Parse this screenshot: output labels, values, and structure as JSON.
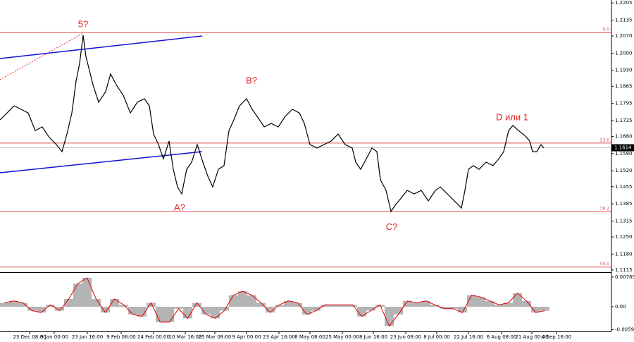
{
  "chart_data": [
    {
      "type": "line",
      "color": "#000000",
      "x": [
        0,
        10,
        20,
        30,
        40,
        50,
        60,
        70,
        80,
        88,
        95,
        102,
        108,
        113,
        118,
        122,
        127,
        132,
        140,
        150,
        157,
        165,
        175,
        185,
        195,
        205,
        212,
        218,
        225,
        232,
        240,
        246,
        252,
        258,
        265,
        272,
        280,
        288,
        295,
        302,
        310,
        318,
        325,
        332,
        340,
        350,
        358,
        365,
        375,
        385,
        395,
        405,
        415,
        425,
        432,
        440,
        450,
        460,
        470,
        480,
        490,
        500,
        505,
        512,
        520,
        528,
        535,
        540,
        548,
        555,
        562,
        570,
        578,
        588,
        598,
        608,
        618,
        625,
        635,
        645,
        655,
        660,
        665,
        672,
        680,
        690,
        700,
        708,
        715,
        722,
        728,
        736,
        745,
        752,
        756,
        762,
        768,
        772
      ],
      "values": [
        1.1728,
        1.1756,
        1.1785,
        1.1771,
        1.1756,
        1.1684,
        1.1699,
        1.1656,
        1.1627,
        1.1598,
        1.167,
        1.1756,
        1.1886,
        1.1958,
        1.2073,
        1.1986,
        1.1929,
        1.1871,
        1.18,
        1.1843,
        1.1915,
        1.1871,
        1.1828,
        1.1756,
        1.18,
        1.1814,
        1.1785,
        1.167,
        1.1627,
        1.1569,
        1.1641,
        1.1526,
        1.1454,
        1.1426,
        1.1526,
        1.1555,
        1.1627,
        1.1555,
        1.1498,
        1.1454,
        1.1526,
        1.1541,
        1.1684,
        1.1728,
        1.1785,
        1.1814,
        1.1771,
        1.1742,
        1.1699,
        1.1713,
        1.1699,
        1.1742,
        1.1771,
        1.1756,
        1.1713,
        1.1627,
        1.1613,
        1.1627,
        1.1641,
        1.167,
        1.1627,
        1.1613,
        1.1555,
        1.1526,
        1.1569,
        1.1613,
        1.1598,
        1.1483,
        1.144,
        1.1354,
        1.1383,
        1.1411,
        1.144,
        1.1426,
        1.144,
        1.1397,
        1.144,
        1.1454,
        1.1426,
        1.1397,
        1.1368,
        1.144,
        1.1526,
        1.1541,
        1.1526,
        1.1555,
        1.1541,
        1.1569,
        1.1598,
        1.1684,
        1.1705,
        1.1684,
        1.1664,
        1.1641,
        1.1598,
        1.1598,
        1.1627,
        1.1613
      ],
      "xlim": [
        0,
        868
      ],
      "ylim": [
        1.1109,
        1.2217
      ],
      "yticks": [
        1.2205,
        1.2135,
        {
          "value": 1.207,
          "label": "1.2070"
        },
        {
          "value": 1.2,
          "label": "1.2000"
        },
        {
          "value": 1.193,
          "label": "1.1930"
        },
        1.1865,
        1.1795,
        1.1725,
        {
          "value": 1.166,
          "label": "1.1660"
        },
        {
          "value": 1.159,
          "label": "1.1590"
        },
        {
          "value": 1.152,
          "label": "1.1520"
        },
        1.1455,
        1.1385,
        1.1315,
        {
          "value": 1.125,
          "label": "1.1250"
        },
        {
          "value": 1.118,
          "label": "1.1180"
        },
        1.1115
      ],
      "hlines": [
        {
          "label": "0.0",
          "value": 1.2084,
          "color": "#e05050"
        },
        {
          "label": "23.6",
          "value": 1.1633,
          "color": "#e05050"
        },
        {
          "label": "38.2",
          "value": 1.1354,
          "color": "#e05050"
        },
        {
          "label": "50.0",
          "value": 1.1127,
          "color": "#e05050"
        }
      ],
      "last_price": 1.1614,
      "annotations": [
        {
          "text": "5?",
          "x": 118,
          "y": 1.2116
        },
        {
          "text": "A?",
          "x": 255,
          "y": 1.1368
        },
        {
          "text": "B?",
          "x": 357,
          "y": 1.1886
        },
        {
          "text": "C?",
          "x": 556,
          "y": 1.1288
        },
        {
          "text": "D или 1",
          "x": 727,
          "y": 1.1736
        }
      ]
    },
    {
      "type": "bar",
      "color": "#b4b4b4",
      "line_color": "#e00000",
      "x": [
        0,
        13,
        26,
        39,
        52,
        65,
        78,
        91,
        104,
        117,
        130,
        143,
        156,
        169,
        182,
        195,
        208,
        221,
        234,
        247,
        260,
        273,
        286,
        299,
        312,
        325,
        338,
        351,
        364,
        377,
        390,
        403,
        416,
        429,
        442,
        455,
        468,
        481,
        494,
        507,
        520,
        533,
        546,
        559,
        572,
        585,
        598,
        611,
        624,
        637,
        650,
        663,
        676,
        689,
        702,
        715,
        728,
        741,
        754,
        767
      ],
      "values": [
        0.001,
        0.0015,
        0.001,
        -0.001,
        -0.0015,
        0.0005,
        -0.001,
        0.002,
        0.006,
        0.0075,
        0.002,
        -0.0015,
        0.002,
        0.0005,
        -0.002,
        -0.0025,
        0.001,
        -0.004,
        -0.004,
        -0.0005,
        -0.003,
        0.001,
        -0.002,
        -0.003,
        -0.001,
        0.003,
        0.004,
        0.003,
        0.001,
        -0.0015,
        0.0005,
        0.0015,
        0.001,
        -0.002,
        -0.001,
        0.0005,
        0.0005,
        0.0005,
        0.0005,
        -0.0025,
        -0.001,
        0.0005,
        -0.005,
        -0.002,
        0.0015,
        0.001,
        0.0015,
        0.0005,
        -0.0005,
        -0.0005,
        -0.0015,
        0.003,
        0.0025,
        0.0015,
        0.0005,
        0.001,
        0.0035,
        0.0015,
        -0.0015,
        -0.001
      ],
      "xlim": [
        0,
        868
      ],
      "ylim": [
        -0.0064,
        0.0086
      ],
      "yticks": [
        0.00769,
        {
          "value": 0,
          "label": "0.00"
        },
        -0.00593
      ],
      "xticks": [
        {
          "value": 42,
          "label": "23 Dec 08:00"
        },
        {
          "value": 77,
          "label": "9 Jan 00:00"
        },
        {
          "value": 124,
          "label": "23 Jan 16:00"
        },
        {
          "value": 172,
          "label": "9 Feb 08:00"
        },
        {
          "value": 218,
          "label": "24 Feb 00:00"
        },
        {
          "value": 263,
          "label": "10 Mar 16:00"
        },
        {
          "value": 305,
          "label": "25 Mar 08:00"
        },
        {
          "value": 350,
          "label": "9 Apr 00:00"
        },
        {
          "value": 396,
          "label": "23 Apr 16:00"
        },
        {
          "value": 440,
          "label": "8 May 08:00"
        },
        {
          "value": 486,
          "label": "25 May 00:00"
        },
        {
          "value": 530,
          "label": "8 Jun 16:00"
        },
        {
          "value": 576,
          "label": "23 Jun 08:00"
        },
        {
          "value": 620,
          "label": "8 Jul 00:00"
        },
        {
          "value": 665,
          "label": "22 Jul 16:00"
        },
        {
          "value": 712,
          "label": "6 Aug 08:00"
        },
        {
          "value": 755,
          "label": "21 Aug 00:00"
        },
        {
          "value": 790,
          "label": "4 Sep 16:00"
        }
      ]
    }
  ]
}
